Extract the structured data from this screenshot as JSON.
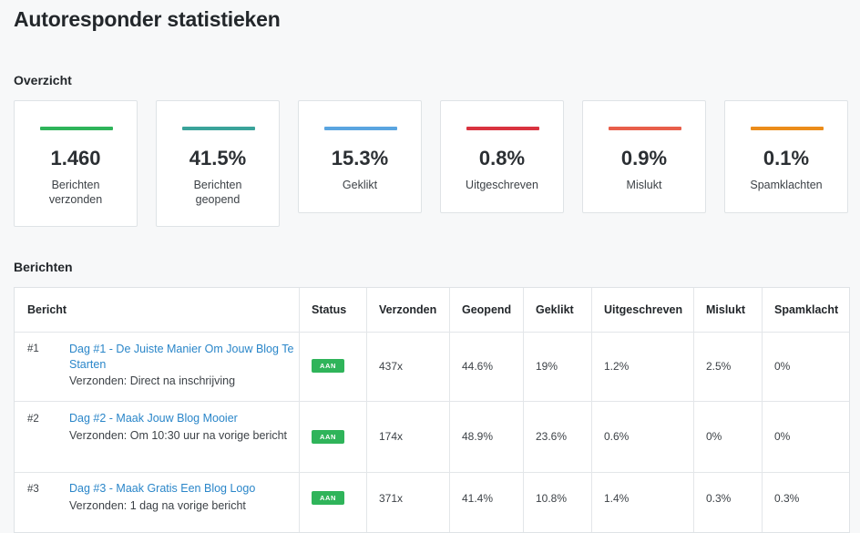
{
  "page_title": "Autoresponder statistieken",
  "overview": {
    "title": "Overzicht",
    "stats": [
      {
        "value": "1.460",
        "label": "Berichten verzonden",
        "color": "#2fb45a"
      },
      {
        "value": "41.5%",
        "label": "Berichten geopend",
        "color": "#3aa39a"
      },
      {
        "value": "15.3%",
        "label": "Geklikt",
        "color": "#5aa5e0"
      },
      {
        "value": "0.8%",
        "label": "Uitgeschreven",
        "color": "#d9333f"
      },
      {
        "value": "0.9%",
        "label": "Mislukt",
        "color": "#e85e4a"
      },
      {
        "value": "0.1%",
        "label": "Spamklachten",
        "color": "#eb8c1a"
      }
    ]
  },
  "messages": {
    "title": "Berichten",
    "columns": [
      "Bericht",
      "Status",
      "Verzonden",
      "Geopend",
      "Geklikt",
      "Uitgeschreven",
      "Mislukt",
      "Spamklacht"
    ],
    "rows": [
      {
        "num": "#1",
        "title": "Dag #1 - De Juiste Manier Om Jouw Blog Te Starten",
        "sent_when": "Verzonden: Direct na inschrijving",
        "status": "AAN",
        "verzonden": "437x",
        "geopend": "44.6%",
        "geklikt": "19%",
        "uitgeschreven": "1.2%",
        "mislukt": "2.5%",
        "spamklacht": "0%"
      },
      {
        "num": "#2",
        "title": "Dag #2 - Maak Jouw Blog Mooier",
        "sent_when": "Verzonden: Om 10:30 uur na vorige bericht",
        "status": "AAN",
        "verzonden": "174x",
        "geopend": "48.9%",
        "geklikt": "23.6%",
        "uitgeschreven": "0.6%",
        "mislukt": "0%",
        "spamklacht": "0%"
      },
      {
        "num": "#3",
        "title": "Dag #3 - Maak Gratis Een Blog Logo",
        "sent_when": "Verzonden: 1 dag na vorige bericht",
        "status": "AAN",
        "verzonden": "371x",
        "geopend": "41.4%",
        "geklikt": "10.8%",
        "uitgeschreven": "1.4%",
        "mislukt": "0.3%",
        "spamklacht": "0.3%"
      }
    ]
  }
}
